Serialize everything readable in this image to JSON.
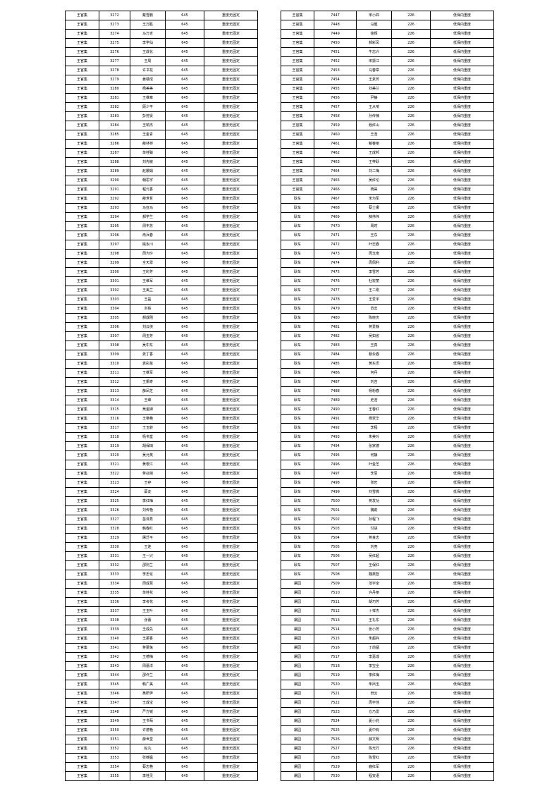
{
  "left_table": {
    "rows": [
      [
        "王官集",
        "3272",
        "戴雪鹏",
        "645",
        "重度无固定"
      ],
      [
        "王官集",
        "3273",
        "王万胜",
        "645",
        "重度无固定"
      ],
      [
        "王官集",
        "3274",
        "马万吉",
        "645",
        "重度无固定"
      ],
      [
        "王官集",
        "3275",
        "李学仙",
        "645",
        "重度无固定"
      ],
      [
        "王官集",
        "3276",
        "王成化",
        "645",
        "重度无固定"
      ],
      [
        "王官集",
        "3277",
        "王局",
        "645",
        "重度无固定"
      ],
      [
        "王官集",
        "3278",
        "许书花",
        "645",
        "重度无固定"
      ],
      [
        "王官集",
        "3279",
        "姜楼成",
        "645",
        "重度无固定"
      ],
      [
        "王官集",
        "3280",
        "杨美美",
        "645",
        "重度无固定"
      ],
      [
        "王官集",
        "3281",
        "王维章",
        "645",
        "重度无固定"
      ],
      [
        "王官集",
        "3282",
        "顾少平",
        "645",
        "重度无固定"
      ],
      [
        "王官集",
        "3283",
        "彭劳贤",
        "645",
        "重度无固定"
      ],
      [
        "王官集",
        "3284",
        "王响杰",
        "645",
        "重度无固定"
      ],
      [
        "王官集",
        "3285",
        "王金青",
        "645",
        "重度无固定"
      ],
      [
        "王官集",
        "3286",
        "薛林桥",
        "645",
        "重度无固定"
      ],
      [
        "王官集",
        "3287",
        "单桂臻",
        "645",
        "重度无固定"
      ],
      [
        "王官集",
        "3288",
        "刘先敏",
        "645",
        "重度无固定"
      ],
      [
        "王官集",
        "3289",
        "赵娜娟",
        "645",
        "重度无固定"
      ],
      [
        "王官集",
        "3290",
        "朝思宇",
        "645",
        "重度无固定"
      ],
      [
        "王官集",
        "3291",
        "程元香",
        "645",
        "重度无固定"
      ],
      [
        "王官集",
        "3292",
        "薛世哲",
        "645",
        "重度无固定"
      ],
      [
        "王官集",
        "3293",
        "马亚马",
        "645",
        "重度无固定"
      ],
      [
        "王官集",
        "3294",
        "郝学兰",
        "645",
        "重度无固定"
      ],
      [
        "王官集",
        "3295",
        "周丰苏",
        "645",
        "重度无固定"
      ],
      [
        "王官集",
        "3296",
        "冉兵春",
        "645",
        "重度无固定"
      ],
      [
        "王官集",
        "3297",
        "姚永川",
        "645",
        "重度无固定"
      ],
      [
        "王官集",
        "3298",
        "周为玲",
        "645",
        "重度无固定"
      ],
      [
        "王官集",
        "3299",
        "全天翠",
        "645",
        "重度无固定"
      ],
      [
        "王官集",
        "3300",
        "王彩芳",
        "645",
        "重度无固定"
      ],
      [
        "王官集",
        "3301",
        "王维军",
        "645",
        "重度无固定"
      ],
      [
        "王官集",
        "3302",
        "王美兰",
        "645",
        "重度无固定"
      ],
      [
        "王官集",
        "3303",
        "王磊",
        "645",
        "重度无固定"
      ],
      [
        "王官集",
        "3304",
        "刘铁",
        "645",
        "重度无固定"
      ],
      [
        "王官集",
        "3305",
        "郝成刚",
        "645",
        "重度无固定"
      ],
      [
        "王官集",
        "3306",
        "刘云侠",
        "645",
        "重度无固定"
      ],
      [
        "王官集",
        "3307",
        "周玉芳",
        "645",
        "重度无固定"
      ],
      [
        "王官集",
        "3308",
        "吴中东",
        "645",
        "重度无固定"
      ],
      [
        "王官集",
        "3309",
        "龚丁香",
        "645",
        "重度无固定"
      ],
      [
        "王官集",
        "3310",
        "龚彩苗",
        "645",
        "重度无固定"
      ],
      [
        "王官集",
        "3311",
        "王维军",
        "645",
        "重度无固定"
      ],
      [
        "王官集",
        "3312",
        "王振奇",
        "645",
        "重度无固定"
      ],
      [
        "王官集",
        "3313",
        "薛凤芝",
        "645",
        "重度无固定"
      ],
      [
        "王官集",
        "3314",
        "王峰",
        "645",
        "重度无固定"
      ],
      [
        "王官集",
        "3315",
        "吴金娣",
        "645",
        "重度无固定"
      ],
      [
        "王官集",
        "3316",
        "王艳艳",
        "645",
        "重度无固定"
      ],
      [
        "王官集",
        "3317",
        "王玉转",
        "645",
        "重度无固定"
      ],
      [
        "王官集",
        "3318",
        "杨书堂",
        "645",
        "重度无固定"
      ],
      [
        "王官集",
        "3319",
        "胡保田",
        "645",
        "重度无固定"
      ],
      [
        "王官集",
        "3320",
        "吴允英",
        "645",
        "重度无固定"
      ],
      [
        "王官集",
        "3321",
        "黄根江",
        "645",
        "重度无固定"
      ],
      [
        "王官集",
        "3322",
        "蒋召丽",
        "645",
        "重度无固定"
      ],
      [
        "王官集",
        "3323",
        "王存",
        "645",
        "重度无固定"
      ],
      [
        "王官集",
        "3324",
        "蔡友",
        "645",
        "重度无固定"
      ],
      [
        "王官集",
        "3325",
        "李红梅",
        "645",
        "重度无固定"
      ],
      [
        "王官集",
        "3326",
        "刘传艳",
        "645",
        "重度无固定"
      ],
      [
        "王官集",
        "3327",
        "苗泽秀",
        "645",
        "重度无固定"
      ],
      [
        "王官集",
        "3328",
        "韩春红",
        "645",
        "重度无固定"
      ],
      [
        "王官集",
        "3329",
        "屠迁平",
        "645",
        "重度无固定"
      ],
      [
        "王官集",
        "3330",
        "王连",
        "645",
        "重度无固定"
      ],
      [
        "王官集",
        "3331",
        "王一兴",
        "645",
        "重度无固定"
      ],
      [
        "王官集",
        "3332",
        "邵则兰",
        "645",
        "重度无固定"
      ],
      [
        "王官集",
        "3333",
        "李志化",
        "645",
        "重度无固定"
      ],
      [
        "王官集",
        "3334",
        "周成慧",
        "645",
        "重度无固定"
      ],
      [
        "王官集",
        "3335",
        "单桂花",
        "645",
        "重度无固定"
      ],
      [
        "王官集",
        "3336",
        "李考花",
        "645",
        "重度无固定"
      ],
      [
        "王官集",
        "3337",
        "王玉叶",
        "645",
        "重度无固定"
      ],
      [
        "王官集",
        "3338",
        "张蕾",
        "645",
        "重度无固定"
      ],
      [
        "王官集",
        "3339",
        "王成先",
        "645",
        "重度无固定"
      ],
      [
        "王官集",
        "3340",
        "王振香",
        "645",
        "重度无固定"
      ],
      [
        "王官集",
        "3341",
        "蒋蕾兔",
        "645",
        "重度无固定"
      ],
      [
        "王官集",
        "3342",
        "王德梅",
        "645",
        "重度无固定"
      ],
      [
        "王官集",
        "3343",
        "周蕾洋",
        "645",
        "重度无固定"
      ],
      [
        "王官集",
        "3344",
        "邵作兰",
        "645",
        "重度无固定"
      ],
      [
        "王官集",
        "3345",
        "韩广美",
        "645",
        "重度无固定"
      ],
      [
        "王官集",
        "3346",
        "吴研尹",
        "645",
        "重度无固定"
      ],
      [
        "王官集",
        "3347",
        "王成宝",
        "645",
        "重度无固定"
      ],
      [
        "王官集",
        "3348",
        "严方锐",
        "645",
        "重度无固定"
      ],
      [
        "王官集",
        "3349",
        "王书萄",
        "645",
        "重度无固定"
      ],
      [
        "王官集",
        "3350",
        "许德艳",
        "645",
        "重度无固定"
      ],
      [
        "王官集",
        "3351",
        "薛世堂",
        "645",
        "重度无固定"
      ],
      [
        "王官集",
        "3352",
        "赵丸",
        "645",
        "重度无固定"
      ],
      [
        "王官集",
        "3353",
        "张楠猛",
        "645",
        "重度无固定"
      ],
      [
        "王官集",
        "3354",
        "蔡志艳",
        "645",
        "重度无固定"
      ],
      [
        "王官集",
        "3355",
        "李桂灵",
        "645",
        "重度无固定"
      ]
    ]
  },
  "right_table": {
    "rows": [
      [
        "王官集",
        "7447",
        "宋小四",
        "226",
        "低保内重度"
      ],
      [
        "王官集",
        "7448",
        "马健",
        "226",
        "低保内重度"
      ],
      [
        "王官集",
        "7449",
        "徐辉",
        "226",
        "低保内重度"
      ],
      [
        "王官集",
        "7450",
        "郝彩凤",
        "226",
        "低保内重度"
      ],
      [
        "王官集",
        "7451",
        "牛志兴",
        "226",
        "低保内重度"
      ],
      [
        "王官集",
        "7452",
        "宋振江",
        "226",
        "低保内重度"
      ],
      [
        "王官集",
        "7453",
        "马春章",
        "226",
        "低保内重度"
      ],
      [
        "王官集",
        "7454",
        "王素芳",
        "226",
        "低保内重度"
      ],
      [
        "王官集",
        "7455",
        "刘美兰",
        "226",
        "低保内重度"
      ],
      [
        "王官集",
        "7456",
        "尹静",
        "226",
        "低保内重度"
      ],
      [
        "王官集",
        "7457",
        "王从响",
        "226",
        "低保内重度"
      ],
      [
        "王官集",
        "7458",
        "孙传楠",
        "226",
        "低保内重度"
      ],
      [
        "王官集",
        "7459",
        "聂红山",
        "226",
        "低保内重度"
      ],
      [
        "王官集",
        "7460",
        "王浩",
        "226",
        "低保内重度"
      ],
      [
        "王官集",
        "7461",
        "戴春丽",
        "226",
        "低保内重度"
      ],
      [
        "王官集",
        "7462",
        "王成邦",
        "226",
        "低保内重度"
      ],
      [
        "王官集",
        "7463",
        "王梓跃",
        "226",
        "低保内重度"
      ],
      [
        "王官集",
        "7464",
        "刘二梅",
        "226",
        "低保内重度"
      ],
      [
        "王官集",
        "7465",
        "吴红伦",
        "226",
        "低保内重度"
      ],
      [
        "王官集",
        "7466",
        "杨昊",
        "226",
        "低保内重度"
      ],
      [
        "耿车",
        "7467",
        "宋为军",
        "226",
        "低保内重度"
      ],
      [
        "耿车",
        "7468",
        "蔡士娜",
        "226",
        "低保内重度"
      ],
      [
        "耿车",
        "7469",
        "薛伟伟",
        "226",
        "低保内重度"
      ],
      [
        "耿车",
        "7470",
        "周时",
        "226",
        "低保内重度"
      ],
      [
        "耿车",
        "7471",
        "王东",
        "226",
        "低保内重度"
      ],
      [
        "耿车",
        "7472",
        "叶志春",
        "226",
        "低保内重度"
      ],
      [
        "耿车",
        "7473",
        "周玉南",
        "226",
        "低保内重度"
      ],
      [
        "耿车",
        "7474",
        "周佩利",
        "226",
        "低保内重度"
      ],
      [
        "耿车",
        "7475",
        "李雪芳",
        "226",
        "低保内重度"
      ],
      [
        "耿车",
        "7476",
        "杜宏丽",
        "226",
        "低保内重度"
      ],
      [
        "耿车",
        "7477",
        "王二刚",
        "226",
        "低保内重度"
      ],
      [
        "耿车",
        "7478",
        "王爱宇",
        "226",
        "低保内重度"
      ],
      [
        "耿车",
        "7479",
        "范志",
        "226",
        "低保内重度"
      ],
      [
        "耿车",
        "7480",
        "陈晓庆",
        "226",
        "低保内重度"
      ],
      [
        "耿车",
        "7481",
        "蒋爱静",
        "226",
        "低保内重度"
      ],
      [
        "耿车",
        "7482",
        "吴如省",
        "226",
        "低保内重度"
      ],
      [
        "耿车",
        "7483",
        "王真",
        "226",
        "低保内重度"
      ],
      [
        "耿车",
        "7484",
        "蔡永春",
        "226",
        "低保内重度"
      ],
      [
        "耿车",
        "7485",
        "黄东讯",
        "226",
        "低保内重度"
      ],
      [
        "耿车",
        "7486",
        "何丹",
        "226",
        "低保内重度"
      ],
      [
        "耿车",
        "7487",
        "刘吉",
        "226",
        "低保内重度"
      ],
      [
        "耿车",
        "7488",
        "杨粉春",
        "226",
        "低保内重度"
      ],
      [
        "耿车",
        "7489",
        "史浩",
        "226",
        "低保内重度"
      ],
      [
        "耿车",
        "7490",
        "王春红",
        "226",
        "低保内重度"
      ],
      [
        "耿车",
        "7491",
        "杨翠华",
        "226",
        "低保内重度"
      ],
      [
        "耿车",
        "7492",
        "李程",
        "226",
        "低保内重度"
      ],
      [
        "耿车",
        "7493",
        "朱美玲",
        "226",
        "低保内重度"
      ],
      [
        "耿车",
        "7494",
        "张家德",
        "226",
        "低保内重度"
      ],
      [
        "耿车",
        "7495",
        "何静",
        "226",
        "低保内重度"
      ],
      [
        "耿车",
        "7496",
        "叶金芝",
        "226",
        "低保内重度"
      ],
      [
        "耿车",
        "7497",
        "李思",
        "226",
        "低保内重度"
      ],
      [
        "耿车",
        "7498",
        "张旺",
        "226",
        "低保内重度"
      ],
      [
        "耿车",
        "7499",
        "刘雪微",
        "226",
        "低保内重度"
      ],
      [
        "耿车",
        "7500",
        "蒋发功",
        "226",
        "低保内重度"
      ],
      [
        "耿车",
        "7501",
        "魏莉",
        "226",
        "低保内重度"
      ],
      [
        "耿车",
        "7502",
        "孙程飞",
        "226",
        "低保内重度"
      ],
      [
        "耿车",
        "7503",
        "付进",
        "226",
        "低保内重度"
      ],
      [
        "耿车",
        "7504",
        "蒋良志",
        "226",
        "低保内重度"
      ],
      [
        "耿车",
        "7505",
        "刘亮",
        "226",
        "低保内重度"
      ],
      [
        "耿车",
        "7506",
        "吴红超",
        "226",
        "低保内重度"
      ],
      [
        "耿车",
        "7507",
        "王保红",
        "226",
        "低保内重度"
      ],
      [
        "耿车",
        "7508",
        "魏英智",
        "226",
        "低保内重度"
      ],
      [
        "屠园",
        "7509",
        "范宇全",
        "226",
        "低保内重度"
      ],
      [
        "屠园",
        "7510",
        "许丹丽",
        "226",
        "低保内重度"
      ],
      [
        "屠园",
        "7511",
        "胡巧芳",
        "226",
        "低保内重度"
      ],
      [
        "屠园",
        "7512",
        "卜祥杰",
        "226",
        "低保内重度"
      ],
      [
        "屠园",
        "7513",
        "王礼东",
        "226",
        "低保内重度"
      ],
      [
        "屠园",
        "7514",
        "张小芳",
        "226",
        "低保内重度"
      ],
      [
        "屠园",
        "7515",
        "朱超兵",
        "226",
        "低保内重度"
      ],
      [
        "屠园",
        "7516",
        "丁前猛",
        "226",
        "低保内重度"
      ],
      [
        "屠园",
        "7517",
        "李嘉成",
        "226",
        "低保内重度"
      ],
      [
        "屠园",
        "7518",
        "李宝全",
        "226",
        "低保内重度"
      ],
      [
        "屠园",
        "7519",
        "李红梅",
        "226",
        "低保内重度"
      ],
      [
        "屠园",
        "7520",
        "朱凤玉",
        "226",
        "低保内重度"
      ],
      [
        "屠园",
        "7521",
        "田云",
        "226",
        "低保内重度"
      ],
      [
        "屠园",
        "7522",
        "周宇佳",
        "226",
        "低保内重度"
      ],
      [
        "屠园",
        "7523",
        "仓乃雷",
        "226",
        "低保内重度"
      ],
      [
        "屠园",
        "7524",
        "夏小兆",
        "226",
        "低保内重度"
      ],
      [
        "屠园",
        "7525",
        "夏中有",
        "226",
        "低保内重度"
      ],
      [
        "屠园",
        "7526",
        "薛文明",
        "226",
        "低保内重度"
      ],
      [
        "屠园",
        "7527",
        "陈光行",
        "226",
        "低保内重度"
      ],
      [
        "屠园",
        "7528",
        "陈雪红",
        "226",
        "低保内重度"
      ],
      [
        "屠园",
        "7529",
        "鹿红军",
        "226",
        "低保内重度"
      ],
      [
        "屠园",
        "7530",
        "程安语",
        "226",
        "低保内重度"
      ]
    ]
  }
}
